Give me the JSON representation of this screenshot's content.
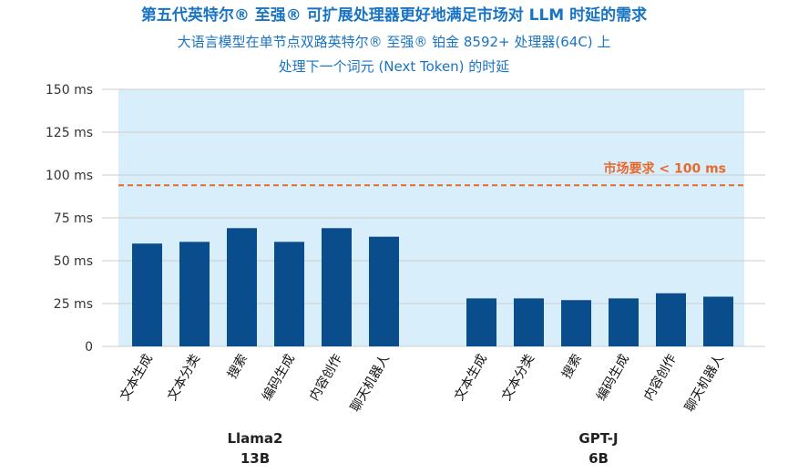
{
  "title": "第五代英特尔® 至强® 可扩展处理器更好地满足市场对 LLM 时延的需求",
  "subtitle_line1": "大语言模型在单节点双路英特尔® 至强® 铂金 8592+ 处理器(64C) 上",
  "subtitle_line2": "处理下一个词元 (Next Token) 的时延",
  "colors": {
    "bar": "#0a4d8c",
    "plot_bg": "#d8eefb",
    "threshold": "#e8692d",
    "grid": "#cccccc"
  },
  "chart_data": {
    "type": "bar",
    "ylabel": "",
    "ylim": [
      0,
      150
    ],
    "yticks": [
      0,
      25,
      50,
      75,
      100,
      125,
      150
    ],
    "ytick_labels": [
      "0",
      "25 ms",
      "50 ms",
      "75 ms",
      "100 ms",
      "125 ms",
      "150 ms"
    ],
    "threshold": {
      "value": 94,
      "label": "市场要求 < 100 ms"
    },
    "groups": [
      {
        "name_line1": "Llama2",
        "name_line2": "13B",
        "categories": [
          "文本生成",
          "文本分类",
          "搜索",
          "编码生成",
          "内容创作",
          "聊天机器人"
        ],
        "values": [
          60,
          61,
          69,
          61,
          69,
          64
        ]
      },
      {
        "name_line1": "GPT-J",
        "name_line2": "6B",
        "categories": [
          "文本生成",
          "文本分类",
          "搜索",
          "编码生成",
          "内容创作",
          "聊天机器人"
        ],
        "values": [
          28,
          28,
          27,
          28,
          31,
          29
        ]
      }
    ]
  }
}
